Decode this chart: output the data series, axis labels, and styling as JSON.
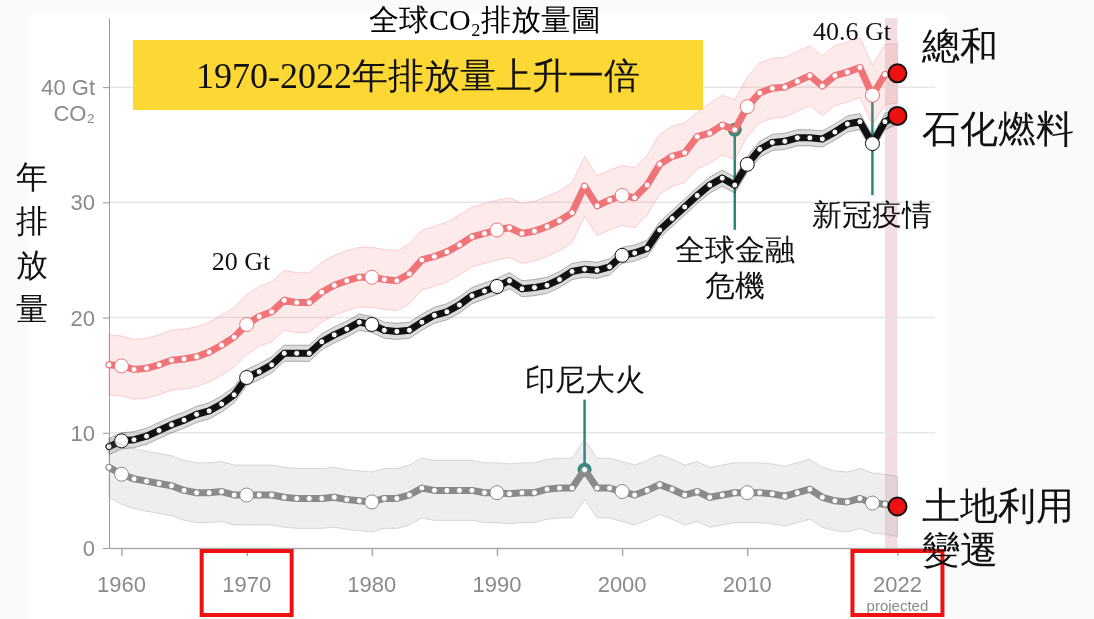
{
  "chart_data": {
    "type": "line",
    "title": "全球CO₂排放量圖",
    "ylabel": "年排放量",
    "x": [
      1959,
      1960,
      1961,
      1962,
      1963,
      1964,
      1965,
      1966,
      1967,
      1968,
      1969,
      1970,
      1971,
      1972,
      1973,
      1974,
      1975,
      1976,
      1977,
      1978,
      1979,
      1980,
      1981,
      1982,
      1983,
      1984,
      1985,
      1986,
      1987,
      1988,
      1989,
      1990,
      1991,
      1992,
      1993,
      1994,
      1995,
      1996,
      1997,
      1998,
      1999,
      2000,
      2001,
      2002,
      2003,
      2004,
      2005,
      2006,
      2007,
      2008,
      2009,
      2010,
      2011,
      2012,
      2013,
      2014,
      2015,
      2016,
      2017,
      2018,
      2019,
      2020,
      2021,
      2022
    ],
    "series": [
      {
        "name": "總和",
        "color": "#f07377",
        "values": [
          15.9,
          15.8,
          15.5,
          15.6,
          15.9,
          16.3,
          16.4,
          16.6,
          17.0,
          17.6,
          18.3,
          19.4,
          20.1,
          20.5,
          21.5,
          21.3,
          21.3,
          22.2,
          22.8,
          23.2,
          23.5,
          23.5,
          23.3,
          23.2,
          23.8,
          25.0,
          25.3,
          25.7,
          26.3,
          27.0,
          27.3,
          27.6,
          27.8,
          27.3,
          27.5,
          27.9,
          28.4,
          29.1,
          31.4,
          29.7,
          30.2,
          30.6,
          30.4,
          31.5,
          33.3,
          34.0,
          34.3,
          35.7,
          36.0,
          36.7,
          36.3,
          38.3,
          39.5,
          39.9,
          40.0,
          40.5,
          41.0,
          40.1,
          41.0,
          41.3,
          41.7,
          39.3,
          41.1,
          41.2
        ],
        "upper": [
          18.5,
          18.4,
          18.1,
          18.2,
          18.5,
          18.9,
          19.0,
          19.2,
          19.6,
          20.2,
          20.9,
          22.0,
          22.7,
          23.1,
          24.1,
          23.9,
          23.9,
          24.8,
          25.4,
          25.8,
          26.1,
          26.1,
          25.9,
          25.8,
          26.4,
          27.6,
          27.9,
          28.3,
          28.9,
          29.6,
          29.9,
          30.2,
          30.4,
          29.9,
          30.1,
          30.5,
          31.0,
          31.7,
          34.0,
          32.3,
          32.8,
          33.2,
          33.0,
          34.1,
          35.9,
          36.6,
          36.9,
          37.8,
          38.6,
          39.3,
          38.9,
          40.9,
          42.1,
          42.5,
          42.6,
          43.1,
          43.6,
          42.7,
          43.6,
          43.9,
          44.3,
          41.9,
          43.7,
          43.8
        ],
        "lower": [
          13.3,
          13.2,
          12.9,
          13.0,
          13.3,
          13.7,
          13.8,
          14.0,
          14.4,
          15.0,
          15.7,
          16.8,
          17.5,
          17.9,
          18.9,
          18.7,
          18.7,
          19.6,
          20.2,
          20.6,
          20.9,
          20.9,
          20.7,
          20.6,
          21.2,
          22.4,
          22.7,
          23.1,
          23.7,
          24.4,
          24.7,
          25.0,
          25.2,
          24.7,
          24.9,
          25.3,
          25.8,
          26.5,
          28.8,
          27.1,
          27.6,
          28.0,
          27.8,
          28.9,
          30.7,
          31.4,
          31.7,
          32.9,
          33.4,
          34.1,
          33.7,
          35.7,
          36.9,
          37.3,
          37.4,
          37.9,
          38.4,
          37.5,
          38.4,
          38.7,
          39.1,
          36.7,
          38.5,
          38.6
        ]
      },
      {
        "name": "石化燃料",
        "color": "#111111",
        "values": [
          8.8,
          9.3,
          9.4,
          9.7,
          10.2,
          10.7,
          11.1,
          11.6,
          11.9,
          12.5,
          13.3,
          14.8,
          15.3,
          15.9,
          16.9,
          16.9,
          16.9,
          17.9,
          18.5,
          19.0,
          19.6,
          19.4,
          18.9,
          18.8,
          18.9,
          19.6,
          20.2,
          20.5,
          21.1,
          21.9,
          22.3,
          22.7,
          23.2,
          22.5,
          22.6,
          22.8,
          23.3,
          24.0,
          24.2,
          24.1,
          24.4,
          25.4,
          25.6,
          26.0,
          27.6,
          28.6,
          29.6,
          30.6,
          31.5,
          32.1,
          31.5,
          33.3,
          34.6,
          35.2,
          35.3,
          35.6,
          35.6,
          35.5,
          36.1,
          36.8,
          37.0,
          35.1,
          37.0,
          37.5
        ],
        "upper": [
          9.5,
          10.0,
          10.1,
          10.4,
          10.9,
          11.4,
          11.8,
          12.3,
          12.6,
          13.2,
          14.0,
          15.5,
          16.0,
          16.6,
          17.6,
          17.6,
          17.6,
          18.6,
          19.2,
          19.7,
          20.3,
          20.1,
          19.6,
          19.5,
          19.6,
          20.3,
          20.9,
          21.2,
          21.8,
          22.6,
          23.0,
          23.4,
          23.9,
          23.2,
          23.3,
          23.5,
          24.0,
          24.7,
          24.9,
          24.8,
          25.1,
          26.1,
          26.3,
          26.7,
          28.3,
          29.3,
          30.3,
          31.3,
          32.2,
          32.8,
          32.2,
          34.0,
          35.3,
          35.9,
          36.0,
          36.3,
          36.3,
          36.2,
          36.8,
          37.5,
          37.7,
          35.8,
          37.7,
          38.2
        ],
        "lower": [
          8.1,
          8.6,
          8.7,
          9.0,
          9.5,
          10.0,
          10.4,
          10.9,
          11.2,
          11.8,
          12.6,
          14.1,
          14.6,
          15.2,
          16.2,
          16.2,
          16.2,
          17.2,
          17.8,
          18.3,
          18.9,
          18.7,
          18.2,
          18.1,
          18.2,
          18.9,
          19.5,
          19.8,
          20.4,
          21.2,
          21.6,
          22.0,
          22.5,
          21.8,
          21.9,
          22.1,
          22.6,
          23.3,
          23.5,
          23.4,
          23.7,
          24.7,
          24.9,
          25.3,
          26.9,
          27.9,
          28.9,
          29.9,
          30.8,
          31.4,
          30.8,
          32.6,
          33.9,
          34.5,
          34.6,
          34.9,
          34.9,
          34.8,
          35.4,
          36.1,
          36.3,
          34.4,
          36.3,
          36.8
        ]
      },
      {
        "name": "土地利用變遷",
        "color": "#8a8a8a",
        "values": [
          7.0,
          6.4,
          6.0,
          5.8,
          5.6,
          5.4,
          5.0,
          4.8,
          4.8,
          4.9,
          4.6,
          4.6,
          4.6,
          4.6,
          4.4,
          4.3,
          4.3,
          4.3,
          4.4,
          4.2,
          4.1,
          4.0,
          4.3,
          4.3,
          4.6,
          5.2,
          5.0,
          5.0,
          5.0,
          5.0,
          4.8,
          4.8,
          4.7,
          4.8,
          4.8,
          5.1,
          5.2,
          5.2,
          6.8,
          5.2,
          5.2,
          4.9,
          4.6,
          5.0,
          5.5,
          5.1,
          4.6,
          4.9,
          4.4,
          4.6,
          4.8,
          4.8,
          4.8,
          4.7,
          4.5,
          4.8,
          5.1,
          4.4,
          4.1,
          4.0,
          4.3,
          3.9,
          3.8,
          3.6
        ],
        "upper": [
          9.6,
          9.0,
          8.6,
          8.4,
          8.2,
          8.0,
          7.6,
          7.4,
          7.4,
          7.5,
          7.2,
          7.2,
          7.2,
          7.2,
          7.0,
          6.9,
          6.9,
          6.9,
          7.0,
          6.8,
          6.7,
          6.6,
          6.9,
          6.9,
          7.2,
          7.8,
          7.6,
          7.6,
          7.6,
          7.6,
          7.4,
          7.4,
          7.3,
          7.4,
          7.4,
          7.7,
          7.8,
          7.8,
          9.4,
          7.8,
          7.8,
          7.5,
          7.2,
          7.6,
          8.1,
          7.7,
          7.2,
          7.5,
          7.0,
          7.2,
          7.4,
          7.4,
          7.4,
          7.3,
          7.1,
          7.4,
          7.7,
          7.0,
          6.7,
          6.6,
          6.9,
          6.5,
          6.4,
          6.2
        ],
        "lower": [
          4.4,
          3.8,
          3.4,
          3.2,
          3.0,
          2.8,
          2.4,
          2.2,
          2.2,
          2.3,
          2.0,
          2.0,
          2.0,
          2.0,
          1.8,
          1.7,
          1.7,
          1.7,
          1.8,
          1.6,
          1.5,
          1.4,
          1.7,
          1.7,
          2.0,
          2.6,
          2.4,
          2.4,
          2.4,
          2.4,
          2.2,
          2.2,
          2.1,
          2.2,
          2.2,
          2.5,
          2.6,
          2.6,
          4.2,
          2.6,
          2.6,
          2.3,
          2.0,
          2.4,
          2.9,
          2.5,
          2.0,
          2.3,
          1.8,
          2.0,
          2.2,
          2.2,
          2.2,
          2.1,
          1.9,
          2.2,
          2.5,
          1.8,
          1.5,
          1.4,
          1.7,
          1.3,
          1.2,
          1.0
        ]
      }
    ],
    "xlim": [
      1959,
      2025
    ],
    "xticks": [
      1960,
      1970,
      1980,
      1990,
      2000,
      2010,
      {
        "value": 2022,
        "label": "2022$_{projected}$"
      }
    ],
    "ylim": [
      0,
      46
    ],
    "yticks": [
      0,
      10,
      20,
      30,
      {
        "value": 40,
        "label": "40 Gt\nCO₂"
      }
    ],
    "grid": "y",
    "marker": "circle",
    "bands": [
      {
        "axis": "x",
        "from": 2021,
        "to": 2022,
        "color": "#f3dde0"
      }
    ],
    "annotations": [
      "1970-2022年排放量上升一倍",
      "20 Gt",
      "40.6 Gt",
      {
        "text": "全球金融危機",
        "x": 2009,
        "y": 36.3
      },
      {
        "text": "新冠疫情",
        "x": 2020,
        "y": 39.3
      },
      {
        "text": "印尼大火",
        "x": 1997,
        "y": 6.8
      }
    ]
  }
}
